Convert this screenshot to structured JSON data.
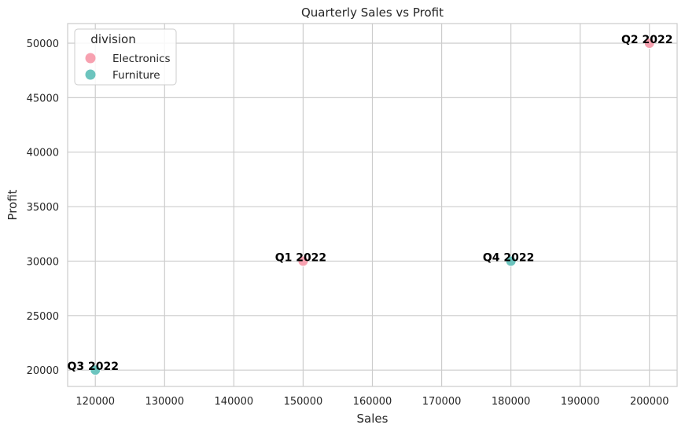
{
  "chart_data": {
    "type": "scatter",
    "title": "Quarterly Sales vs Profit",
    "xlabel": "Sales",
    "ylabel": "Profit",
    "xlim": [
      116000,
      204000
    ],
    "ylim": [
      18500,
      51800
    ],
    "xticks": [
      120000,
      130000,
      140000,
      150000,
      160000,
      170000,
      180000,
      190000,
      200000
    ],
    "yticks": [
      20000,
      25000,
      30000,
      35000,
      40000,
      45000,
      50000
    ],
    "grid": true,
    "legend": {
      "title": "division",
      "placement": "top-left",
      "entries": [
        "Electronics",
        "Furniture"
      ]
    },
    "series": [
      {
        "name": "Electronics",
        "color": "#f7a1b0",
        "points": [
          {
            "x": 150000,
            "y": 30000,
            "label": "Q1 2022"
          },
          {
            "x": 200000,
            "y": 50000,
            "label": "Q2 2022"
          }
        ]
      },
      {
        "name": "Furniture",
        "color": "#6cc4be",
        "points": [
          {
            "x": 120000,
            "y": 20000,
            "label": "Q3 2022"
          },
          {
            "x": 180000,
            "y": 30000,
            "label": "Q4 2022"
          }
        ]
      }
    ]
  }
}
